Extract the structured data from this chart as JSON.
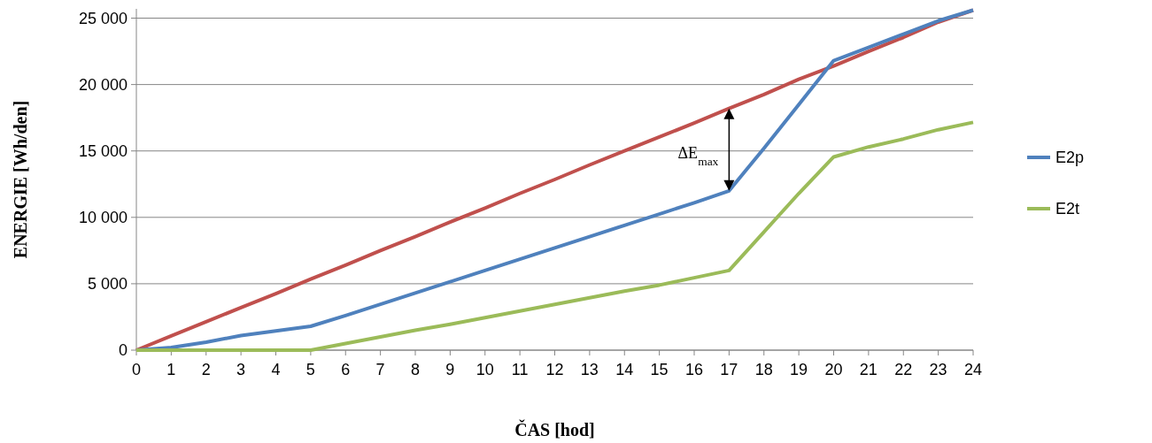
{
  "chart_data": {
    "type": "line",
    "xlabel": "ČAS [hod]",
    "ylabel": "ENERGIE [Wh/den]",
    "x": [
      0,
      1,
      2,
      3,
      4,
      5,
      6,
      7,
      8,
      9,
      10,
      11,
      12,
      13,
      14,
      15,
      16,
      17,
      18,
      19,
      20,
      21,
      22,
      23,
      24
    ],
    "xlim": [
      0,
      24
    ],
    "xticks": [
      0,
      1,
      2,
      3,
      4,
      5,
      6,
      7,
      8,
      9,
      10,
      11,
      12,
      13,
      14,
      15,
      16,
      17,
      18,
      19,
      20,
      21,
      22,
      23,
      24
    ],
    "ylim": [
      0,
      25700
    ],
    "yticks": [
      {
        "value": 0,
        "label": "0"
      },
      {
        "value": 5000,
        "label": "5 000"
      },
      {
        "value": 10000,
        "label": "10 000"
      },
      {
        "value": 15000,
        "label": "15 000"
      },
      {
        "value": 20000,
        "label": "20 000"
      },
      {
        "value": 25000,
        "label": "25 000"
      }
    ],
    "grid": "y",
    "legend": "right",
    "marker": "none",
    "line_style": "solid",
    "series": [
      {
        "color": "#c0504d",
        "values": [
          0,
          1070,
          2140,
          3200,
          4250,
          5350,
          6400,
          7500,
          8550,
          9650,
          10700,
          11800,
          12850,
          13950,
          15000,
          16050,
          17100,
          18200,
          19250,
          20400,
          21400,
          22500,
          23550,
          24700,
          25600
        ]
      },
      {
        "name": "E2p",
        "color": "#4f81bd",
        "values": [
          0,
          200,
          600,
          1100,
          1450,
          1800,
          2600,
          3450,
          4300,
          5150,
          6000,
          6850,
          7700,
          8550,
          9400,
          10250,
          11100,
          12000,
          15200,
          18500,
          21800,
          22800,
          23800,
          24800,
          25600
        ]
      },
      {
        "name": "E2t",
        "color": "#9bbb59",
        "values": [
          0,
          0,
          0,
          0,
          0,
          0,
          500,
          1000,
          1500,
          1950,
          2450,
          2950,
          3450,
          3950,
          4450,
          4900,
          5450,
          6000,
          8900,
          11800,
          14550,
          15300,
          15900,
          16600,
          17150
        ]
      }
    ],
    "annotations": [
      "ΔE$_{max}$"
    ]
  }
}
